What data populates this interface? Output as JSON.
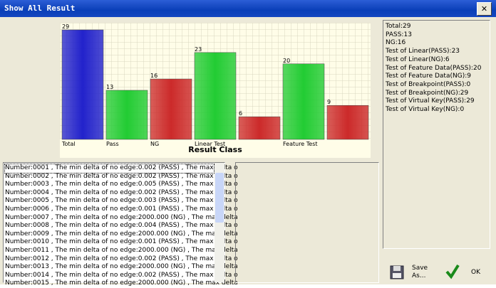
{
  "window": {
    "title": "Show All Result"
  },
  "chart": {
    "type": "bar",
    "x_label": "Result Class",
    "categories": [
      "Total",
      "Pass",
      "NG",
      "Linear Test",
      null,
      "Feature Test",
      null
    ],
    "values": [
      29,
      13,
      16,
      23,
      6,
      20,
      9
    ],
    "colors": [
      "#2222cc",
      "#22cc33",
      "#cc2a2a",
      "#22cc33",
      "#cc2a2a",
      "#22cc33",
      "#cc2a2a"
    ],
    "grid": true
  },
  "summary": {
    "lines": [
      "Total:29",
      "PASS:13",
      "NG:16",
      "Test of Linear(PASS):23",
      "Test of Linear(NG):6",
      "Test of Feature Data(PASS):20",
      "Test of Feature Data(NG):9",
      "Test of Breakpoint(PASS):0",
      "Test of Breakpoint(NG):29",
      "Test of Virtual Key(PASS):29",
      "Test of Virtual Key(NG):0"
    ]
  },
  "log": {
    "rows": [
      "Number:0001 , The min delta of no edge:0.002 (PASS) , The max delta o",
      "Number:0002 , The min delta of no edge:0.002 (PASS) , The max delta o",
      "Number:0003 , The min delta of no edge:0.005 (PASS) , The max delta o",
      "Number:0004 , The min delta of no edge:0.002 (PASS) , The max delta o",
      "Number:0005 , The min delta of no edge:0.003 (PASS) , The max delta o",
      "Number:0006 , The min delta of no edge:0.001 (PASS) , The max delta o",
      "Number:0007 , The min delta of no edge:2000.000 (NG) , The max delta",
      "Number:0008 , The min delta of no edge:0.004 (PASS) , The max delta o",
      "Number:0009 , The min delta of no edge:2000.000 (NG) , The max delta",
      "Number:0010 , The min delta of no edge:0.001 (PASS) , The max delta o",
      "Number:0011 , The min delta of no edge:2000.000 (NG) , The max delta",
      "Number:0012 , The min delta of no edge:0.002 (PASS) , The max delta o",
      "Number:0013 , The min delta of no edge:2000.000 (NG) , The max delta",
      "Number:0014 , The min delta of no edge:0.002 (PASS) , The max delta o",
      "Number:0015 , The min delta of no edge:2000.000 (NG) , The max delta"
    ]
  },
  "buttons": {
    "save": "Save As...",
    "ok": "OK"
  }
}
